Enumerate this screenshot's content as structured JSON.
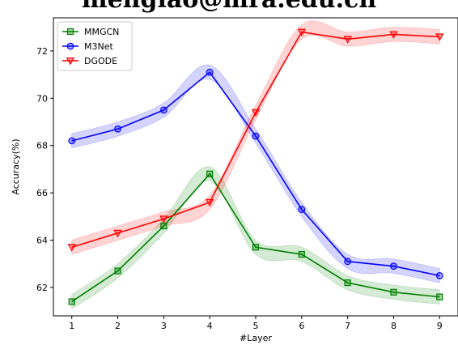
{
  "header": {
    "text": "menglao@mra.edu.cn"
  },
  "chart_data": {
    "type": "line",
    "title": "",
    "xlabel": "#Layer",
    "ylabel": "Accuracy(%)",
    "x": [
      1,
      2,
      3,
      4,
      5,
      6,
      7,
      8,
      9
    ],
    "xlim": [
      0.6,
      9.4
    ],
    "ylim": [
      60.8,
      73.4
    ],
    "xticks": [
      1,
      2,
      3,
      4,
      5,
      6,
      7,
      8,
      9
    ],
    "yticks": [
      62,
      64,
      66,
      68,
      70,
      72
    ],
    "grid": false,
    "legend_position": "top-left",
    "series": [
      {
        "name": "MMGCN",
        "color": "#008000",
        "marker": "square",
        "values": [
          61.4,
          62.7,
          64.6,
          66.8,
          63.7,
          63.4,
          62.2,
          61.8,
          61.6
        ]
      },
      {
        "name": "M3Net",
        "color": "#0000ff",
        "marker": "circle",
        "values": [
          68.2,
          68.7,
          69.5,
          71.1,
          68.4,
          65.3,
          63.1,
          62.9,
          62.5
        ]
      },
      {
        "name": "DGODE",
        "color": "#ff0000",
        "marker": "triangle-down",
        "values": [
          63.7,
          64.3,
          64.9,
          65.6,
          69.4,
          72.8,
          72.5,
          72.7,
          72.6
        ]
      }
    ]
  }
}
